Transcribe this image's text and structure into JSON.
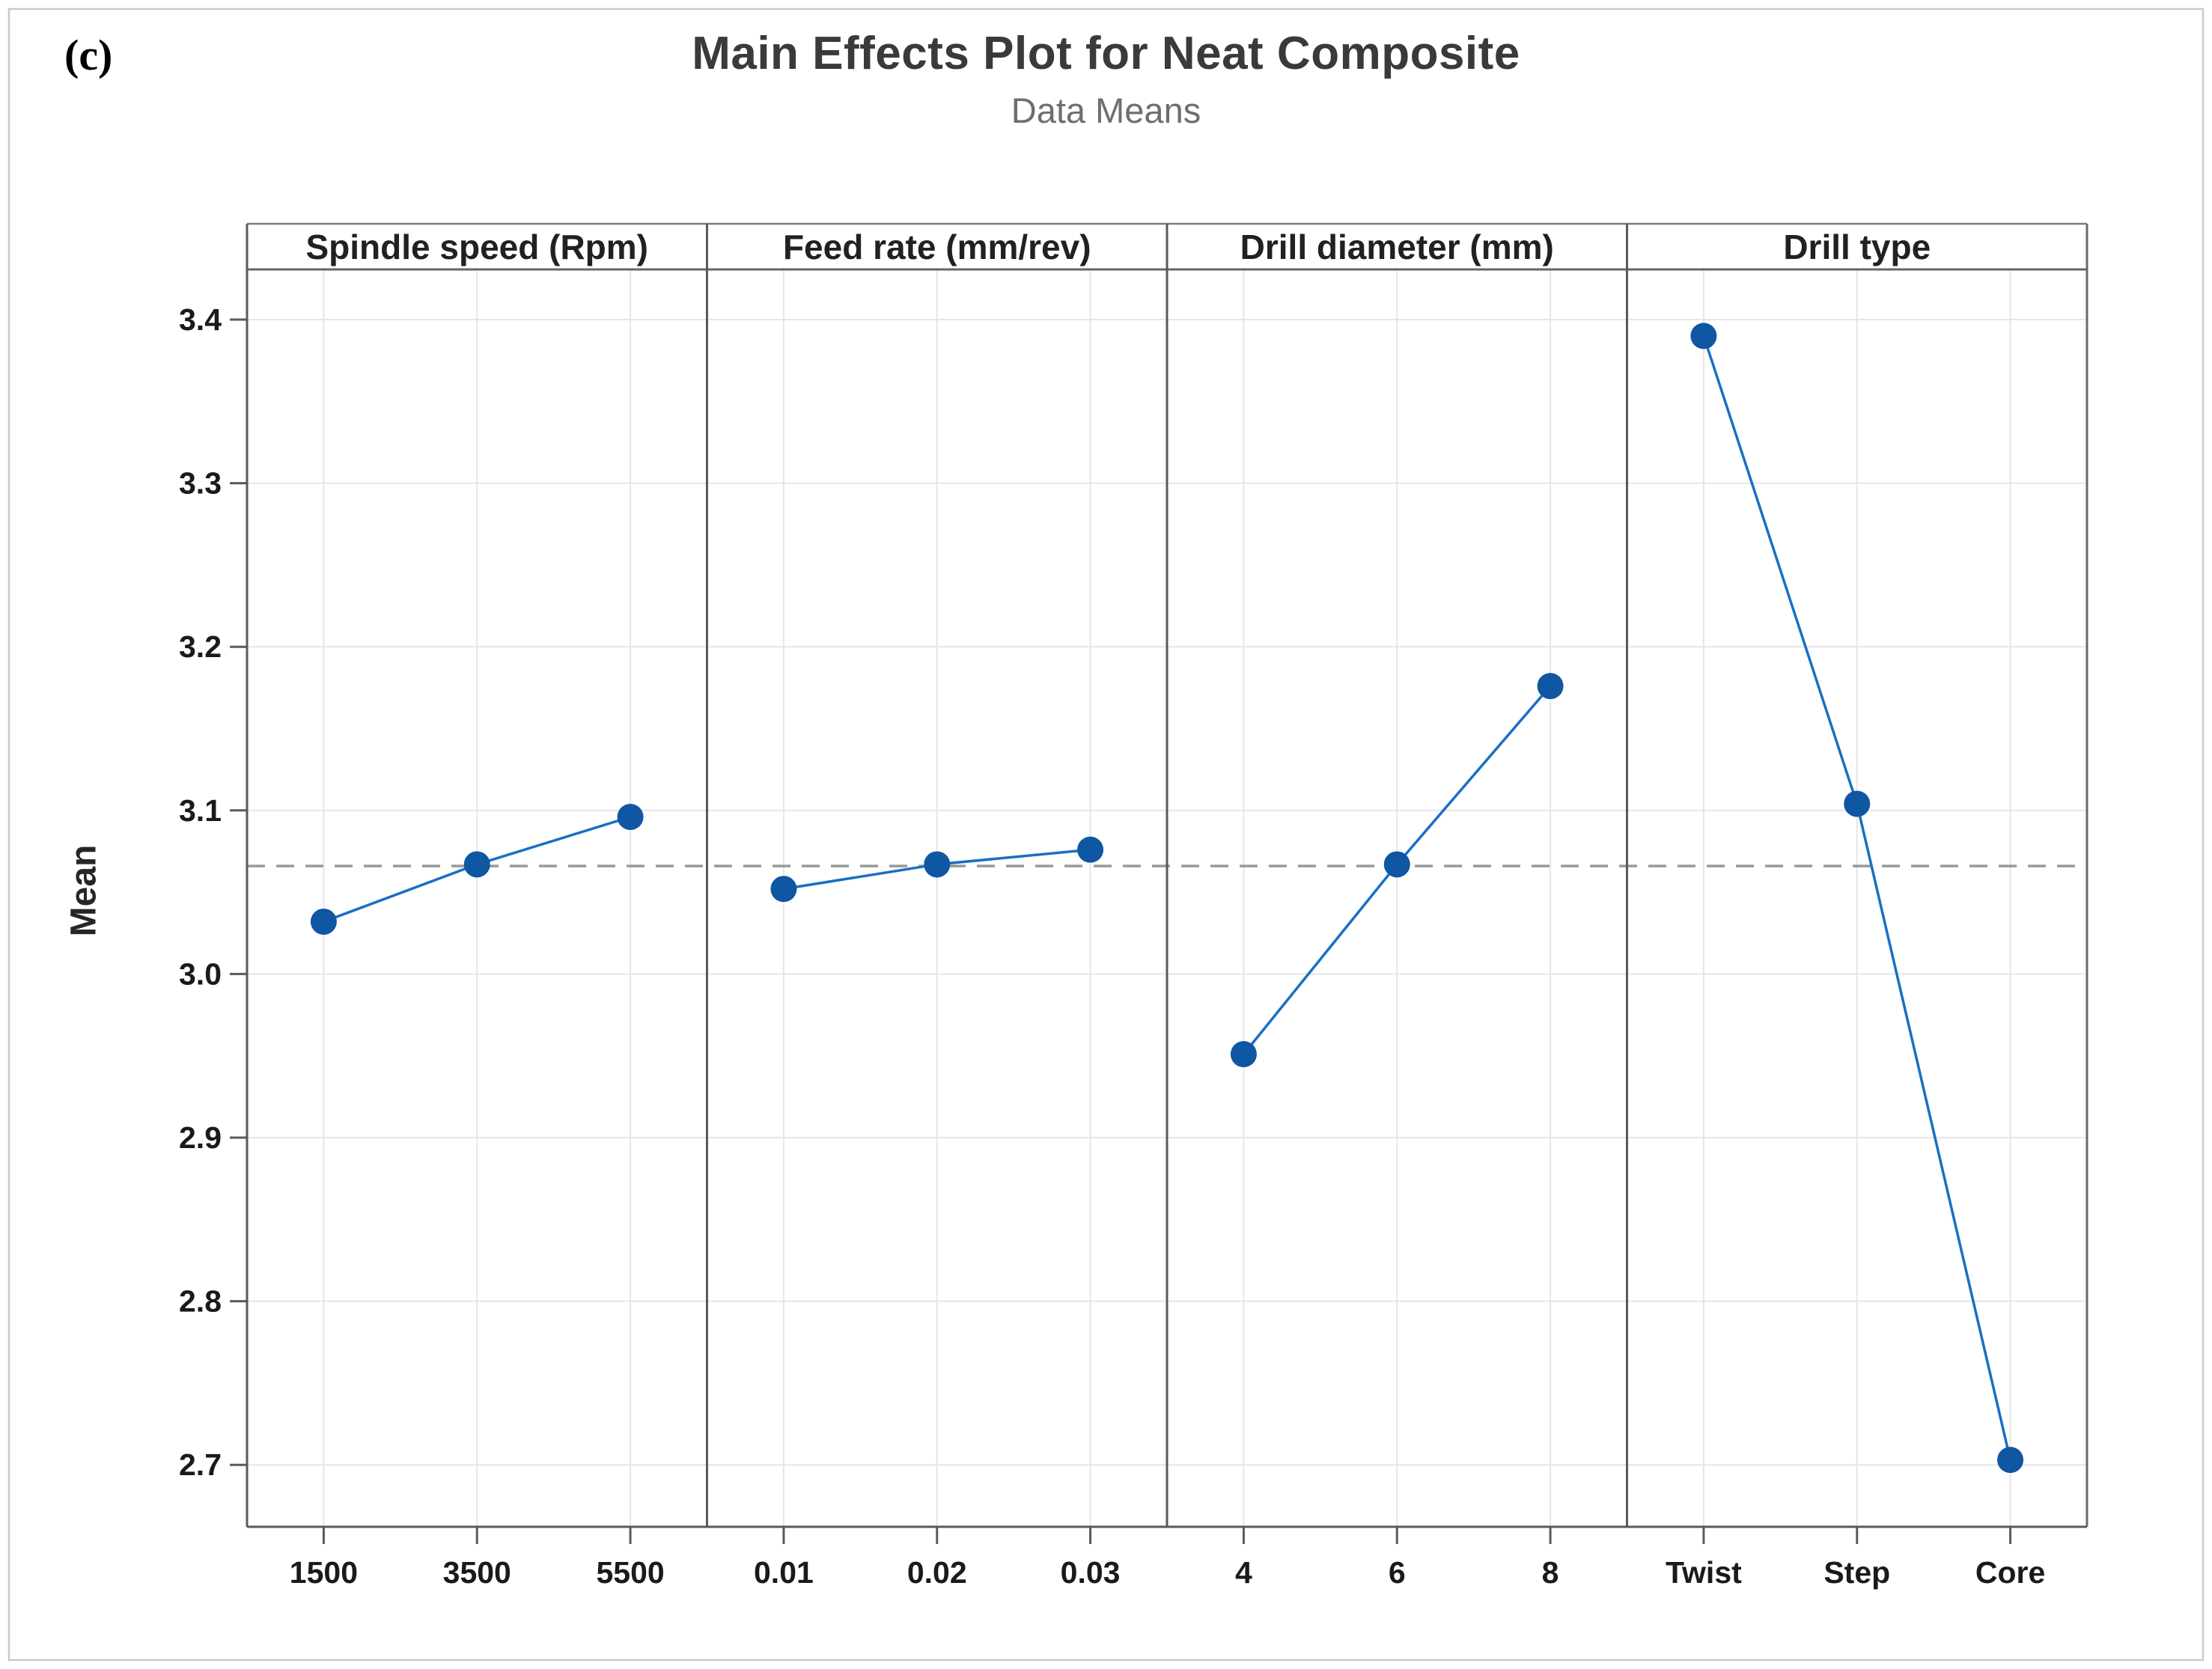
{
  "figure": {
    "corner_label": "(c)"
  },
  "chart_data": {
    "type": "line",
    "title": "Main Effects Plot for Neat Composite",
    "subtitle": "Data Means",
    "ylabel": "Mean",
    "ylim": [
      2.66,
      3.43
    ],
    "yticks": [
      3.4,
      3.3,
      3.2,
      3.1,
      3.0,
      2.9,
      2.8,
      2.7
    ],
    "ytick_labels": [
      "3.4",
      "3.3",
      "3.2",
      "3.1",
      "3.0",
      "2.9",
      "2.8",
      "2.7"
    ],
    "grand_mean": 3.066,
    "grand_mean_line_style": "dashed",
    "grid": true,
    "legend": "none",
    "panels": [
      {
        "label": "Spindle speed (Rpm)",
        "categories": [
          "1500",
          "3500",
          "5500"
        ],
        "values": [
          3.032,
          3.067,
          3.096
        ]
      },
      {
        "label": "Feed rate (mm/rev)",
        "categories": [
          "0.01",
          "0.02",
          "0.03"
        ],
        "values": [
          3.052,
          3.067,
          3.076
        ]
      },
      {
        "label": "Drill diameter (mm)",
        "categories": [
          "4",
          "6",
          "8"
        ],
        "values": [
          2.951,
          3.067,
          3.176
        ]
      },
      {
        "label": "Drill type",
        "categories": [
          "Twist",
          "Step",
          "Core"
        ],
        "values": [
          3.39,
          3.104,
          2.703
        ]
      }
    ],
    "colors": {
      "series_line": "#1a6fc2",
      "marker": "#0f56a3",
      "grand_mean": "#999999",
      "gridline": "#e6e6e6",
      "axis": "#5a5a5a",
      "header_line": "#7a7a7a",
      "figure_border": "#c9c9c9",
      "title": "#3a3a3a",
      "subtitle": "#6e6e6e",
      "tick_label": "#1a1a1a"
    }
  }
}
